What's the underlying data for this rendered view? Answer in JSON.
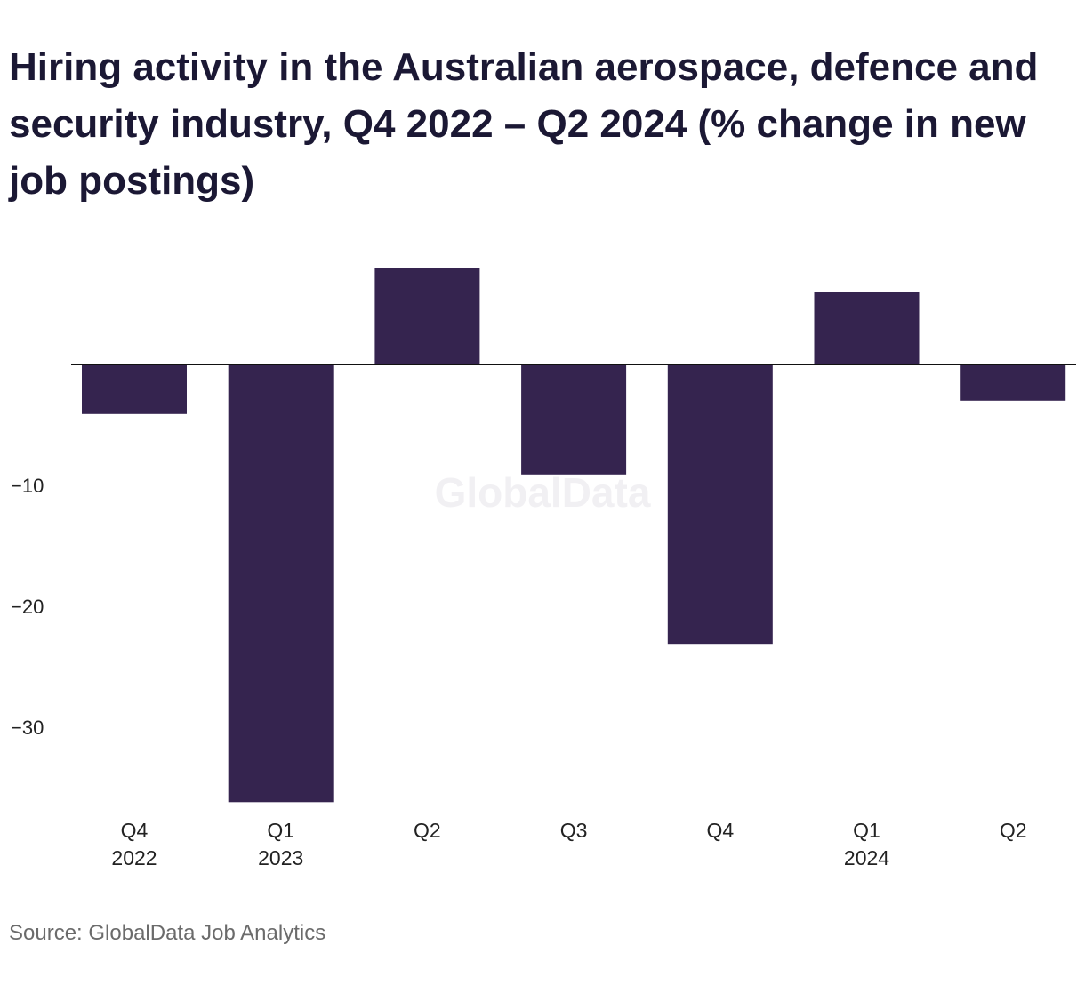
{
  "chart_data": {
    "type": "bar",
    "title": "Hiring activity in the Australian aerospace, defence and security industry, Q4 2022 – Q2 2024 (% change in new job postings)",
    "categories": [
      [
        "Q4",
        "2022"
      ],
      [
        "Q1",
        "2023"
      ],
      [
        "Q2"
      ],
      [
        "Q3"
      ],
      [
        "Q4"
      ],
      [
        "Q1",
        "2024"
      ],
      [
        "Q2"
      ]
    ],
    "values": [
      -4.1,
      -36.2,
      8.0,
      -9.1,
      -23.1,
      6.0,
      -3.0
    ],
    "yticks": [
      -10,
      -20,
      -30
    ],
    "ylim": [
      -36.5,
      8.5
    ],
    "bar_color": "#35244f",
    "grid": false,
    "legend": "none"
  },
  "watermark": "GlobalData",
  "source": "Source: GlobalData Job Analytics"
}
